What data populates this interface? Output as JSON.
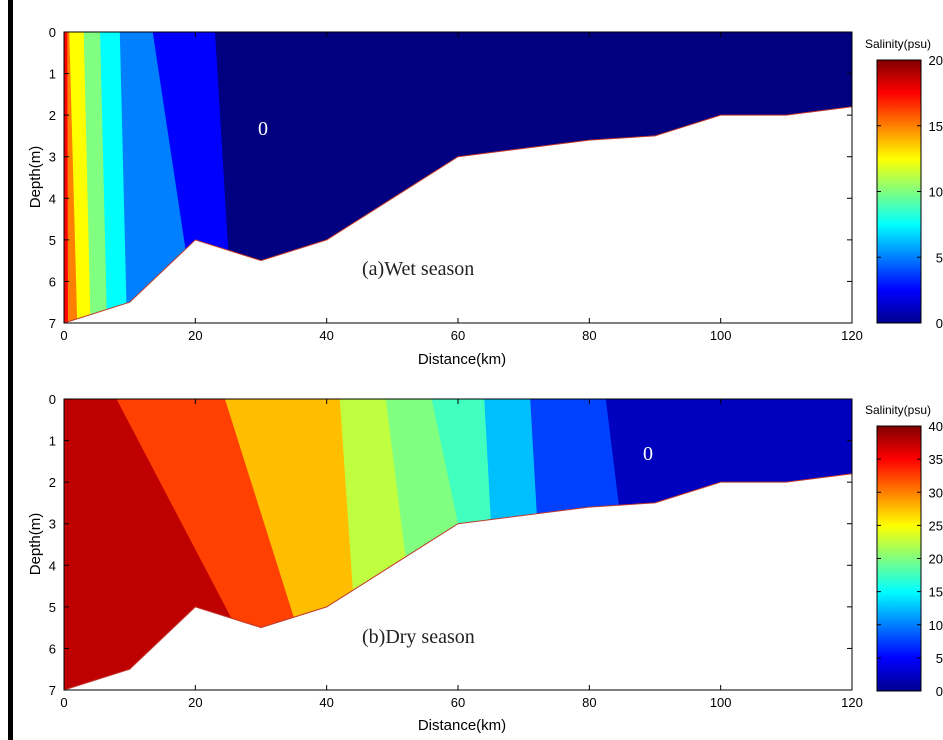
{
  "chart_data": [
    {
      "type": "heatmap",
      "annotation": "(a)Wet season",
      "contour_label": "0",
      "xlabel": "Distance(km)",
      "ylabel": "Depth(m)",
      "xlim": [
        0,
        120
      ],
      "ylim": [
        0,
        7
      ],
      "y_reversed": true,
      "xticks": [
        "0",
        "20",
        "40",
        "60",
        "80",
        "100",
        "120"
      ],
      "yticks": [
        "0",
        "1",
        "2",
        "3",
        "4",
        "5",
        "6",
        "7"
      ],
      "colorbar": {
        "title": "Salinity(psu)",
        "range": [
          0,
          20
        ],
        "ticks": [
          "0",
          "5",
          "10",
          "15",
          "20"
        ]
      },
      "bottom_profile": [
        [
          0,
          7
        ],
        [
          10,
          6.5
        ],
        [
          20,
          5
        ],
        [
          30,
          5.5
        ],
        [
          40,
          5
        ],
        [
          60,
          3
        ],
        [
          80,
          2.6
        ],
        [
          90,
          2.5
        ],
        [
          100,
          2
        ],
        [
          110,
          2
        ],
        [
          120,
          1.8
        ]
      ],
      "salinity_bands": [
        {
          "value": 17.5,
          "x_top": 0.0,
          "x_bottom": 0.0
        },
        {
          "value": 15.0,
          "x_top": 0.5,
          "x_bottom": 0.6
        },
        {
          "value": 12.5,
          "x_top": 0.8,
          "x_bottom": 2.0
        },
        {
          "value": 10.0,
          "x_top": 3.0,
          "x_bottom": 4.0
        },
        {
          "value": 7.5,
          "x_top": 5.5,
          "x_bottom": 6.5
        },
        {
          "value": 5.0,
          "x_top": 8.5,
          "x_bottom": 9.5
        },
        {
          "value": 2.5,
          "x_top": 13.5,
          "x_bottom": 18.5
        },
        {
          "value": 0.0,
          "x_top": 23.0,
          "x_bottom": 25.0
        }
      ]
    },
    {
      "type": "heatmap",
      "annotation": "(b)Dry season",
      "contour_label": "0",
      "xlabel": "Distance(km)",
      "ylabel": "Depth(m)",
      "xlim": [
        0,
        120
      ],
      "ylim": [
        0,
        7
      ],
      "y_reversed": true,
      "xticks": [
        "0",
        "20",
        "40",
        "60",
        "80",
        "100",
        "120"
      ],
      "yticks": [
        "0",
        "1",
        "2",
        "3",
        "4",
        "5",
        "6",
        "7"
      ],
      "colorbar": {
        "title": "Salinity(psu)",
        "range": [
          0,
          40
        ],
        "ticks": [
          "0",
          "5",
          "10",
          "15",
          "20",
          "25",
          "30",
          "35",
          "40"
        ]
      },
      "bottom_profile": [
        [
          0,
          7
        ],
        [
          10,
          6.5
        ],
        [
          20,
          5
        ],
        [
          30,
          5.5
        ],
        [
          40,
          5
        ],
        [
          60,
          3
        ],
        [
          80,
          2.6
        ],
        [
          90,
          2.5
        ],
        [
          100,
          2
        ],
        [
          110,
          2
        ],
        [
          120,
          1.8
        ]
      ],
      "salinity_bands": [
        {
          "value": 37.5,
          "x_top": 0.0,
          "x_bottom": 0.0
        },
        {
          "value": 32.5,
          "x_top": 8.0,
          "x_bottom": 25.5
        },
        {
          "value": 27.5,
          "x_top": 24.5,
          "x_bottom": 35.0
        },
        {
          "value": 22.5,
          "x_top": 42.0,
          "x_bottom": 44.0
        },
        {
          "value": 20.0,
          "x_top": 49.0,
          "x_bottom": 52.0
        },
        {
          "value": 17.5,
          "x_top": 56.0,
          "x_bottom": 60.0
        },
        {
          "value": 12.5,
          "x_top": 64.0,
          "x_bottom": 65.0
        },
        {
          "value": 7.5,
          "x_top": 71.0,
          "x_bottom": 72.0
        },
        {
          "value": 2.5,
          "x_top": 82.5,
          "x_bottom": 84.5
        }
      ]
    }
  ]
}
